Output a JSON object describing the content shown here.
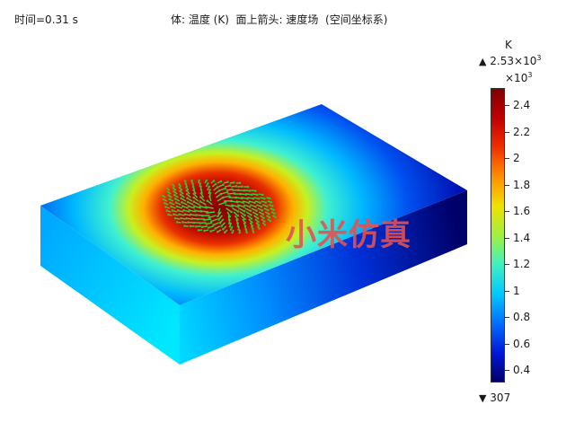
{
  "header": {
    "time_label": "时间=0.31 s",
    "plot_title": "体: 温度 (K)  面上箭头: 速度场  (空间坐标系)"
  },
  "legend": {
    "unit": "K",
    "max_arrow": "▲",
    "max_value": "2.53×10",
    "max_exp": "3",
    "multiplier": "×10",
    "multiplier_exp": "3",
    "min_arrow": "▼",
    "min_value": "307",
    "ticks": [
      "2.4",
      "2.2",
      "2",
      "1.8",
      "1.6",
      "1.4",
      "1.2",
      "1",
      "0.8",
      "0.6",
      "0.4"
    ],
    "tick_values": [
      2.4,
      2.2,
      2.0,
      1.8,
      1.6,
      1.4,
      1.2,
      1.0,
      0.8,
      0.6,
      0.4
    ],
    "range": [
      0.307,
      2.53
    ],
    "colormap": [
      "#00006a",
      "#0018d8",
      "#0070ff",
      "#00c8ff",
      "#40f0c0",
      "#a0f040",
      "#f0e000",
      "#ff9000",
      "#f03000",
      "#c00000",
      "#800000"
    ]
  },
  "watermark": "小米仿真"
}
